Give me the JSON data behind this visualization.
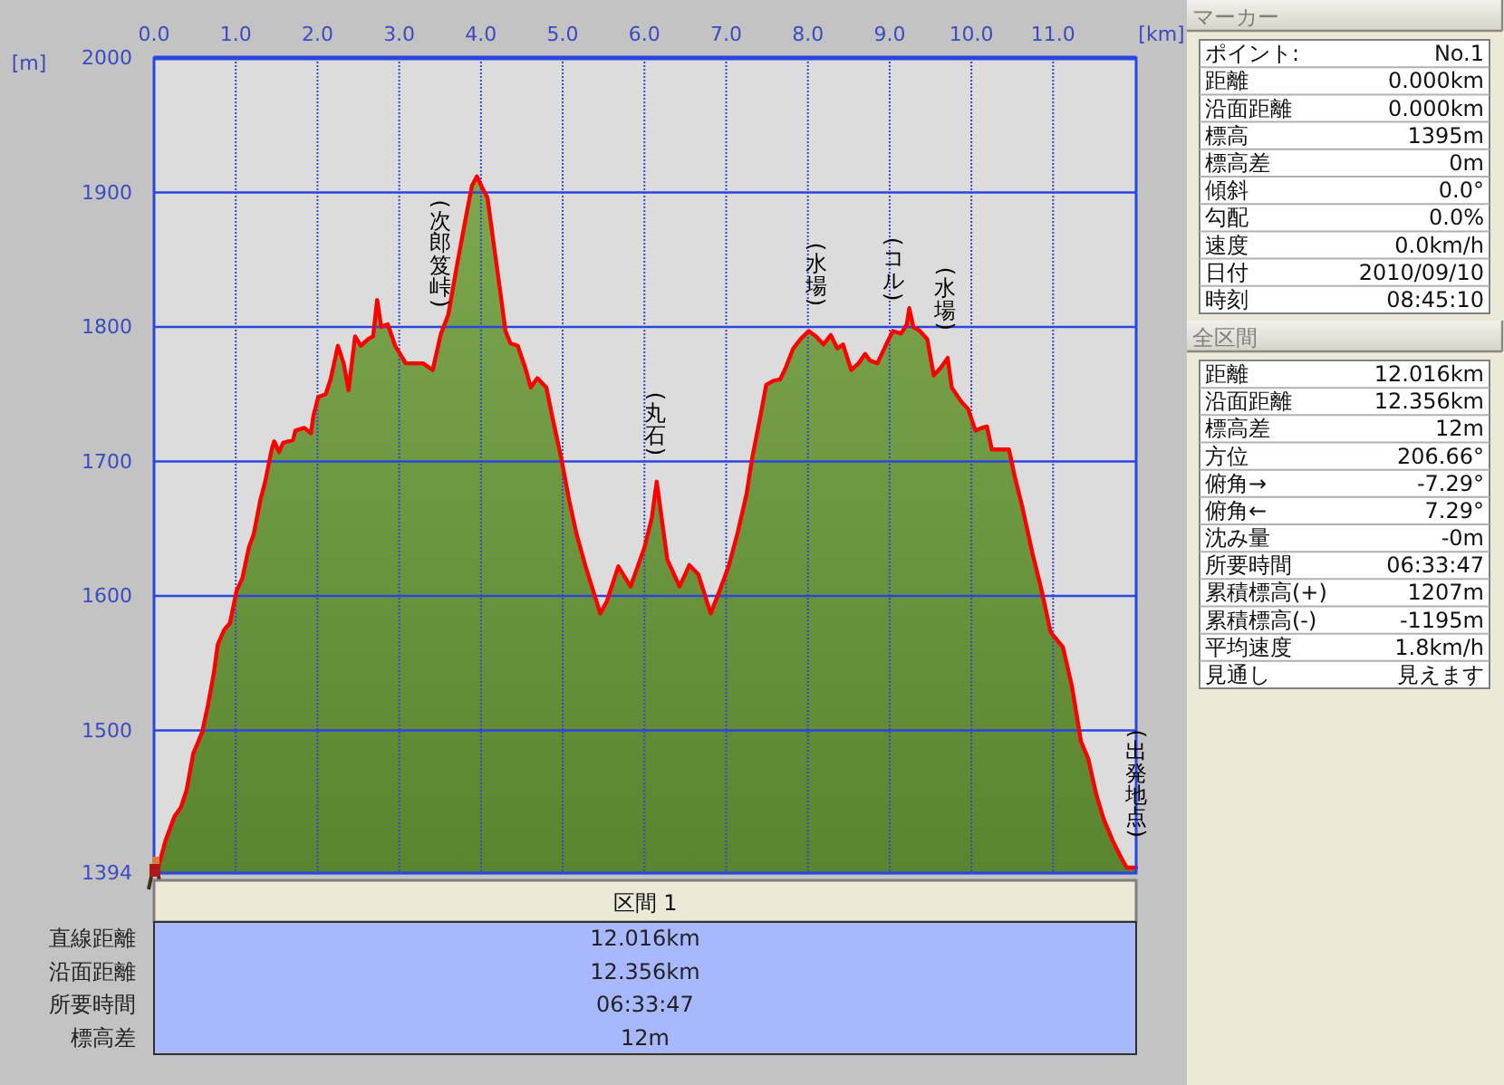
{
  "chart_data": [
    {
      "type": "area",
      "xlabel": "[km]",
      "ylabel": "[m]",
      "x": [
        0,
        0.05,
        0.14,
        0.25,
        0.33,
        0.4,
        0.48,
        0.53,
        0.59,
        0.66,
        0.73,
        0.78,
        0.86,
        0.93,
        1.01,
        1.08,
        1.16,
        1.22,
        1.3,
        1.36,
        1.44,
        1.47,
        1.53,
        1.58,
        1.7,
        1.73,
        1.84,
        1.92,
        1.95,
        2.01,
        2.1,
        2.16,
        2.25,
        2.32,
        2.38,
        2.46,
        2.53,
        2.62,
        2.68,
        2.73,
        2.78,
        2.86,
        2.95,
        3.08,
        3.29,
        3.41,
        3.51,
        3.6,
        3.71,
        3.82,
        3.89,
        3.95,
        4.02,
        4.08,
        4.16,
        4.23,
        4.3,
        4.36,
        4.45,
        4.54,
        4.61,
        4.69,
        4.8,
        4.87,
        4.98,
        5.08,
        5.17,
        5.28,
        5.46,
        5.54,
        5.68,
        5.83,
        6.0,
        6.09,
        6.15,
        6.28,
        6.43,
        6.55,
        6.66,
        6.81,
        6.92,
        7.03,
        7.14,
        7.25,
        7.32,
        7.42,
        7.49,
        7.58,
        7.66,
        7.73,
        7.82,
        7.91,
        8.01,
        8.1,
        8.19,
        8.28,
        8.36,
        8.43,
        8.53,
        8.62,
        8.7,
        8.76,
        8.85,
        8.95,
        9.04,
        9.14,
        9.21,
        9.24,
        9.29,
        9.37,
        9.46,
        9.54,
        9.63,
        9.71,
        9.76,
        9.87,
        9.96,
        10.05,
        10.13,
        10.19,
        10.25,
        10.46,
        10.53,
        10.62,
        10.75,
        10.86,
        10.97,
        11.12,
        11.23,
        11.34,
        11.43,
        11.53,
        11.62,
        11.73,
        11.82,
        11.9,
        12.016
      ],
      "series": [
        {
          "color": "#6b9b37",
          "values": [
            1395,
            1398,
            1418,
            1436,
            1443,
            1456,
            1483,
            1490,
            1499,
            1519,
            1542,
            1564,
            1575,
            1580,
            1604,
            1613,
            1636,
            1646,
            1671,
            1685,
            1709,
            1715,
            1707,
            1714,
            1716,
            1723,
            1725,
            1721,
            1734,
            1748,
            1750,
            1761,
            1786,
            1773,
            1753,
            1793,
            1786,
            1791,
            1793,
            1820,
            1800,
            1802,
            1786,
            1773,
            1773,
            1768,
            1795,
            1809,
            1847,
            1883,
            1905,
            1912,
            1903,
            1896,
            1860,
            1829,
            1797,
            1788,
            1786,
            1770,
            1755,
            1762,
            1755,
            1734,
            1703,
            1671,
            1646,
            1622,
            1587,
            1596,
            1622,
            1607,
            1636,
            1658,
            1685,
            1627,
            1607,
            1623,
            1616,
            1587,
            1604,
            1622,
            1647,
            1676,
            1703,
            1734,
            1757,
            1760,
            1761,
            1770,
            1784,
            1791,
            1797,
            1793,
            1787,
            1794,
            1784,
            1787,
            1768,
            1773,
            1780,
            1775,
            1773,
            1786,
            1797,
            1795,
            1802,
            1814,
            1800,
            1797,
            1791,
            1764,
            1770,
            1777,
            1755,
            1745,
            1739,
            1723,
            1725,
            1726,
            1709,
            1709,
            1689,
            1667,
            1631,
            1604,
            1573,
            1562,
            1533,
            1492,
            1479,
            1452,
            1434,
            1418,
            1407,
            1398,
            1398
          ]
        }
      ],
      "xlim": [
        0,
        12.016
      ],
      "xticks": [
        {
          "value": 0,
          "label": "0.0"
        },
        {
          "value": 1,
          "label": "1.0"
        },
        {
          "value": 2,
          "label": "2.0"
        },
        {
          "value": 3,
          "label": "3.0"
        },
        {
          "value": 4,
          "label": "4.0"
        },
        {
          "value": 5,
          "label": "5.0"
        },
        {
          "value": 6,
          "label": "6.0"
        },
        {
          "value": 7,
          "label": "7.0"
        },
        {
          "value": 8,
          "label": "8.0"
        },
        {
          "value": 9,
          "label": "9.0"
        },
        {
          "value": 10,
          "label": "10.0"
        },
        {
          "value": 11,
          "label": "11.0"
        }
      ],
      "ylim": [
        1394,
        2000
      ],
      "yticks": [
        1394,
        1500,
        1600,
        1700,
        1800,
        1900,
        2000
      ],
      "grid": true,
      "annotations": [
        {
          "text": "(次郎笈峠)",
          "x": 3.5,
          "y": 1792
        },
        {
          "text": "(丸石)",
          "x": 6.13,
          "y": 1682
        },
        {
          "text": "(水場)",
          "x": 8.1,
          "y": 1793
        },
        {
          "text": "(コル)",
          "x": 9.04,
          "y": 1797
        },
        {
          "text": "(水場)",
          "x": 9.68,
          "y": 1775
        },
        {
          "text": "(出発地点)",
          "x": 12.016,
          "y": 1398
        }
      ]
    },
    {
      "type": "other",
      "title": "区間 1",
      "annotations": [
        "直線距離",
        "12.016km",
        "沿面距離",
        "12.356km",
        "所要時間",
        "06:33:47",
        "標高差",
        "12m"
      ]
    },
    {
      "type": "other",
      "title": "マーカー",
      "annotations": [
        "ポイント:",
        "No.1",
        "距離",
        "0.000km",
        "沿面距離",
        "0.000km",
        "標高",
        "1395m",
        "標高差",
        "0m",
        "傾斜",
        "0.0°",
        "勾配",
        "0.0%",
        "速度",
        "0.0km/h",
        "日付",
        "2010/09/10",
        "時刻",
        "08:45:10"
      ]
    },
    {
      "type": "other",
      "title": "全区間",
      "annotations": [
        "距離",
        "12.016km",
        "沿面距離",
        "12.356km",
        "標高差",
        "12m",
        "方位",
        "206.66°",
        "俯角→",
        "-7.29°",
        "俯角←",
        "7.29°",
        "沈み量",
        "-0m",
        "所要時間",
        "06:33:47",
        "累積標高(+)",
        "1207m",
        "累積標高(-)",
        "-1195m",
        "平均速度",
        "1.8km/h",
        "見通し",
        "見えます"
      ]
    }
  ]
}
